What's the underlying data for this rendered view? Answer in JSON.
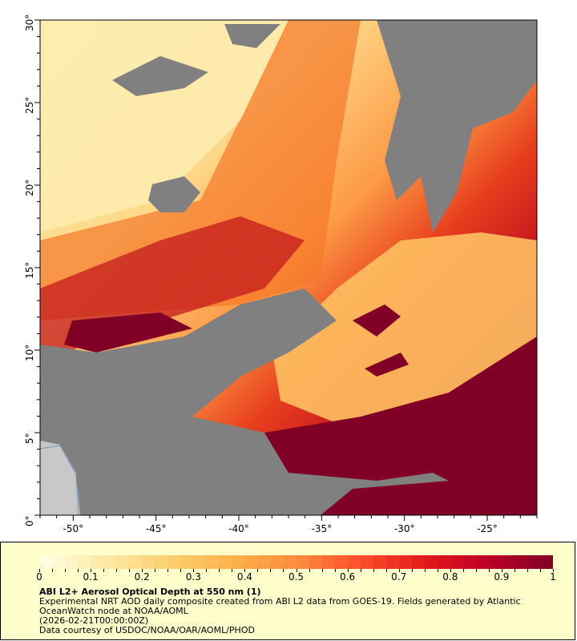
{
  "map": {
    "lat_ticks": [
      "30°",
      "25°",
      "20°",
      "15°",
      "10°",
      "5°",
      "0°"
    ],
    "lon_ticks": [
      "-50°",
      "-45°",
      "-40°",
      "-35°",
      "-30°",
      "-25°"
    ],
    "lat_range": [
      0,
      30
    ],
    "lon_range": [
      -52,
      -22
    ],
    "colors": {
      "cloud": "#808080",
      "land": "#c8c8c8",
      "frame": "#000000"
    }
  },
  "legend": {
    "colorbar_ticks": [
      "0",
      "0.1",
      "0.2",
      "0.3",
      "0.4",
      "0.5",
      "0.6",
      "0.7",
      "0.8",
      "0.9",
      "1"
    ],
    "colorbar_range": [
      0,
      1
    ],
    "colormap_stops": [
      "#ffffe6",
      "#fee9a6",
      "#fed070",
      "#feb24c",
      "#fd8d3c",
      "#fc4e2a",
      "#e31a1c",
      "#bd0026",
      "#800026"
    ],
    "title": "ABI L2+ Aerosol Optical Depth at 550 nm (1)",
    "line1": "Experimental NRT AOD daily composite created from ABI L2 data from GOES-19. Fields generated by Atlantic",
    "line2": "OceanWatch node at NOAA/AOML",
    "line3": "(2026-02-21T00:00:00Z)",
    "line4": "Data courtesy of USDOC/NOAA/OAR/AOML/PHOD"
  }
}
